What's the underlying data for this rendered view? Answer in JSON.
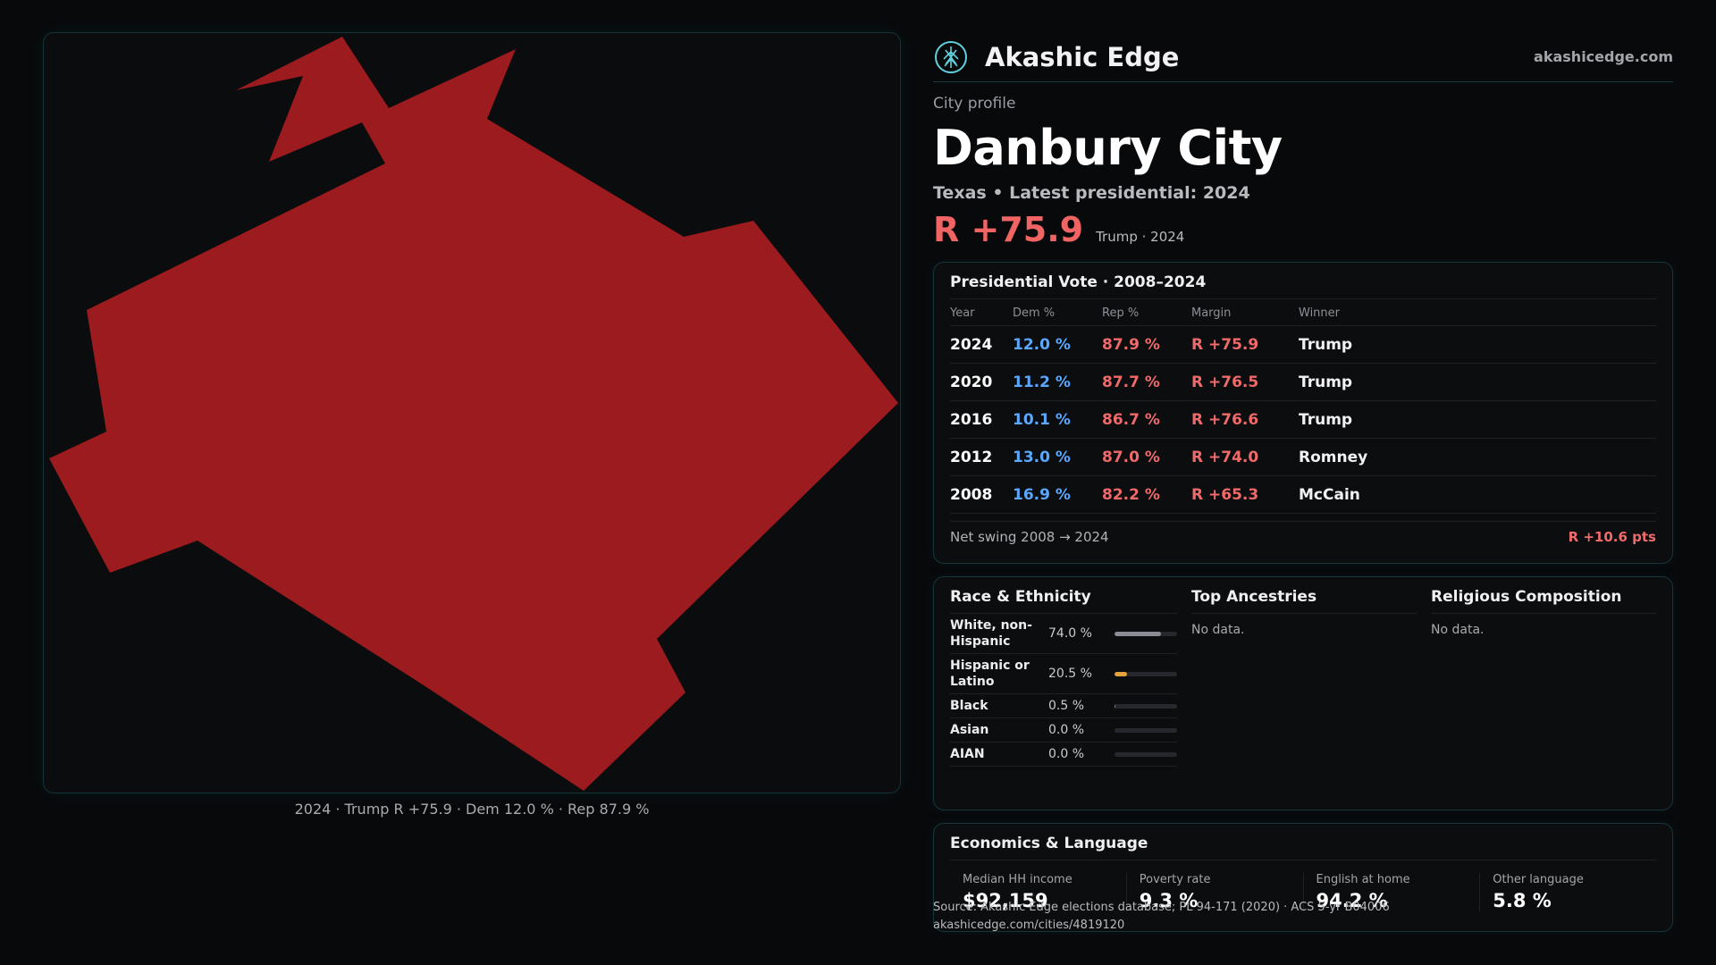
{
  "brand": {
    "name": "Akashic Edge",
    "url": "akashicedge.com",
    "logo_icon": "tree-emblem-icon"
  },
  "profile": {
    "eyebrow": "City profile",
    "city": "Danbury City",
    "subtitle": "Texas • Latest presidential: 2024",
    "margin": "R +75.9",
    "margin_note": "Trump · 2024"
  },
  "map": {
    "caption": "2024 · Trump R +75.9 · Dem 12.0 % · Rep 87.9 %",
    "fill_color": "#9b1b1f"
  },
  "vote": {
    "title": "Presidential Vote · 2008–2024",
    "columns": [
      "Year",
      "Dem %",
      "Rep %",
      "Margin",
      "Winner"
    ],
    "rows": [
      {
        "year": "2024",
        "dem": "12.0 %",
        "rep": "87.9 %",
        "margin": "R +75.9",
        "winner": "Trump"
      },
      {
        "year": "2020",
        "dem": "11.2 %",
        "rep": "87.7 %",
        "margin": "R +76.5",
        "winner": "Trump"
      },
      {
        "year": "2016",
        "dem": "10.1 %",
        "rep": "86.7 %",
        "margin": "R +76.6",
        "winner": "Trump"
      },
      {
        "year": "2012",
        "dem": "13.0 %",
        "rep": "87.0 %",
        "margin": "R +74.0",
        "winner": "Romney"
      },
      {
        "year": "2008",
        "dem": "16.9 %",
        "rep": "82.2 %",
        "margin": "R +65.3",
        "winner": "McCain"
      }
    ],
    "swing_label": "Net swing 2008 → 2024",
    "swing_value": "R +10.6 pts"
  },
  "race": {
    "title": "Race & Ethnicity",
    "rows": [
      {
        "label": "White, non-Hispanic",
        "value": "74.0 %",
        "fraction": 0.74,
        "color": "#8a8d96"
      },
      {
        "label": "Hispanic or Latino",
        "value": "20.5 %",
        "fraction": 0.205,
        "color": "#e6a23c"
      },
      {
        "label": "Black",
        "value": "0.5 %",
        "fraction": 0.005,
        "color": "#8a8d96"
      },
      {
        "label": "Asian",
        "value": "0.0 %",
        "fraction": 0.0,
        "color": "#8a8d96"
      },
      {
        "label": "AIAN",
        "value": "0.0 %",
        "fraction": 0.0,
        "color": "#8a8d96"
      }
    ]
  },
  "ancestries": {
    "title": "Top Ancestries",
    "empty": "No data."
  },
  "religion": {
    "title": "Religious Composition",
    "empty": "No data."
  },
  "economics": {
    "title": "Economics & Language",
    "items": [
      {
        "label": "Median HH income",
        "value": "$92,159"
      },
      {
        "label": "Poverty rate",
        "value": "9.3 %"
      },
      {
        "label": "English at home",
        "value": "94.2 %"
      },
      {
        "label": "Other language",
        "value": "5.8 %"
      }
    ]
  },
  "source": {
    "line1": "Source: Akashic Edge elections database; PL 94-171 (2020) · ACS 5-yr B04006",
    "line2": "akashicedge.com/cities/4819120"
  }
}
